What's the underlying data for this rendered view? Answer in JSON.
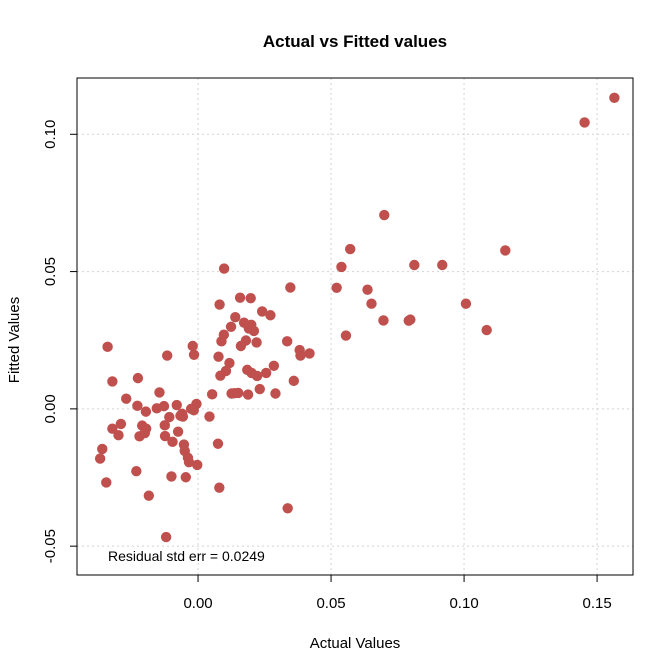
{
  "chart_data": {
    "type": "scatter",
    "title": "Actual vs Fitted values",
    "xlabel": "Actual Values",
    "ylabel": "Fitted Values",
    "xlim": [
      -0.0455,
      0.1635
    ],
    "ylim": [
      -0.0605,
      0.1205
    ],
    "xticks": [
      0.0,
      0.05,
      0.1,
      0.15
    ],
    "xtick_labels": [
      "0.00",
      "0.05",
      "0.10",
      "0.15"
    ],
    "yticks": [
      -0.05,
      0.0,
      0.05,
      0.1
    ],
    "ytick_labels": [
      "-0.05",
      "0.00",
      "0.05",
      "0.10"
    ],
    "grid": true,
    "point_color": "#C0504D",
    "annotation": "Residual std err =  0.0249",
    "x": [
      0.1565,
      0.1453,
      0.1155,
      0.1085,
      0.1007,
      0.0918,
      0.0813,
      0.0798,
      0.0792,
      0.07,
      0.0697,
      0.0652,
      0.0637,
      0.0572,
      0.0556,
      0.0539,
      0.0521,
      0.0419,
      0.0385,
      0.0382,
      0.036,
      0.0347,
      0.0337,
      0.0335,
      0.0291,
      0.0285,
      0.0272,
      0.0256,
      0.0241,
      0.0232,
      0.0222,
      0.022,
      0.021,
      0.0201,
      0.02,
      0.0198,
      0.0191,
      0.0188,
      0.0185,
      0.018,
      0.0173,
      0.0161,
      0.0158,
      0.0151,
      0.014,
      0.0137,
      0.0126,
      0.0124,
      0.0118,
      0.0105,
      0.0098,
      0.0097,
      0.0088,
      0.0084,
      0.0081,
      0.008,
      0.0077,
      0.0075,
      0.0053,
      0.0043,
      -0.0003,
      -0.0006,
      -0.0015,
      -0.0016,
      -0.002,
      -0.0026,
      -0.0034,
      -0.0038,
      -0.0046,
      -0.005,
      -0.0053,
      -0.0057,
      -0.006,
      -0.0066,
      -0.0075,
      -0.008,
      -0.0096,
      -0.01,
      -0.0108,
      -0.0116,
      -0.012,
      -0.0124,
      -0.0125,
      -0.0128,
      -0.0145,
      -0.0155,
      -0.0185,
      -0.0195,
      -0.0196,
      -0.02,
      -0.021,
      -0.022,
      -0.0226,
      -0.0228,
      -0.0232,
      -0.027,
      -0.029,
      -0.0299,
      -0.0322,
      -0.0322,
      -0.034,
      -0.0345,
      -0.036,
      -0.0368
    ],
    "y": [
      0.1133,
      0.1043,
      0.0577,
      0.0287,
      0.0383,
      0.0524,
      0.0524,
      0.0325,
      0.0321,
      0.0706,
      0.0322,
      0.0383,
      0.0434,
      0.0582,
      0.0267,
      0.0517,
      0.0441,
      0.0202,
      0.0194,
      0.0214,
      0.0102,
      0.0442,
      -0.0362,
      0.0246,
      0.0056,
      0.0157,
      0.0341,
      0.0131,
      0.0355,
      0.0072,
      0.012,
      0.0242,
      0.0284,
      0.0131,
      0.0306,
      0.0403,
      0.0293,
      0.0052,
      0.0142,
      0.0249,
      0.0314,
      0.0229,
      0.0405,
      0.0058,
      0.0334,
      0.0057,
      0.0056,
      0.0299,
      0.0167,
      0.0138,
      0.0511,
      0.027,
      0.0246,
      0.0121,
      0.038,
      -0.0287,
      0.019,
      -0.0127,
      0.0053,
      -0.0028,
      -0.0204,
      0.0018,
      0.0197,
      -0.0005,
      0.0229,
      0.0,
      -0.0194,
      -0.0178,
      -0.0249,
      -0.0153,
      -0.013,
      -0.0028,
      -0.0018,
      -0.0025,
      -0.0083,
      0.0014,
      -0.012,
      -0.0246,
      -0.003,
      0.0194,
      -0.0467,
      -0.0099,
      -0.006,
      0.001,
      0.006,
      0.0002,
      -0.0316,
      -0.0072,
      -0.001,
      -0.0088,
      -0.0061,
      -0.01,
      0.0112,
      0.0011,
      -0.0227,
      0.0037,
      -0.0055,
      -0.0096,
      -0.0072,
      0.01,
      0.0226,
      -0.0268,
      -0.0146,
      -0.0181
    ]
  }
}
